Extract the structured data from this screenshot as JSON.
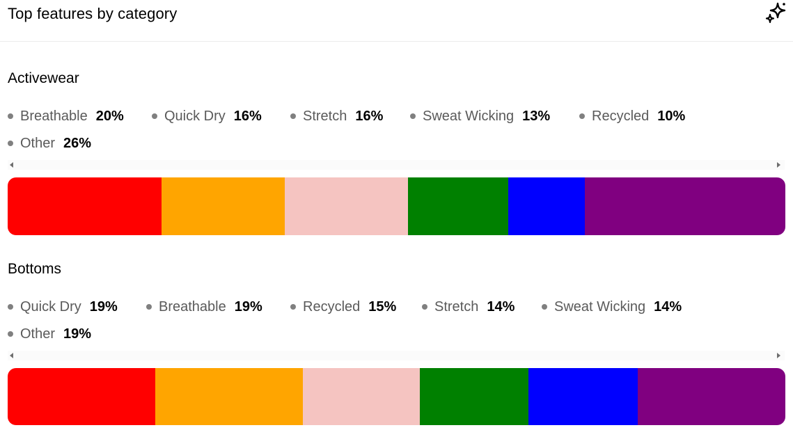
{
  "header": {
    "title": "Top features by category",
    "action_icon": "sparkle-icon"
  },
  "chart_data": [
    {
      "type": "bar",
      "stacked": "100%",
      "title": "Activewear",
      "series": [
        {
          "name": "Breathable",
          "value": 20,
          "value_label": "20%",
          "color": "#ff0000"
        },
        {
          "name": "Quick Dry",
          "value": 16,
          "value_label": "16%",
          "color": "#ffa500"
        },
        {
          "name": "Stretch",
          "value": 16,
          "value_label": "16%",
          "color": "#f5c4c1"
        },
        {
          "name": "Sweat Wicking",
          "value": 13,
          "value_label": "13%",
          "color": "#008000"
        },
        {
          "name": "Recycled",
          "value": 10,
          "value_label": "10%",
          "color": "#0000ff"
        },
        {
          "name": "Other",
          "value": 26,
          "value_label": "26%",
          "color": "#800080"
        }
      ]
    },
    {
      "type": "bar",
      "stacked": "100%",
      "title": "Bottoms",
      "series": [
        {
          "name": "Quick Dry",
          "value": 19,
          "value_label": "19%",
          "color": "#ff0000"
        },
        {
          "name": "Breathable",
          "value": 19,
          "value_label": "19%",
          "color": "#ffa500"
        },
        {
          "name": "Recycled",
          "value": 15,
          "value_label": "15%",
          "color": "#f5c4c1"
        },
        {
          "name": "Stretch",
          "value": 14,
          "value_label": "14%",
          "color": "#008000"
        },
        {
          "name": "Sweat Wicking",
          "value": 14,
          "value_label": "14%",
          "color": "#0000ff"
        },
        {
          "name": "Other",
          "value": 19,
          "value_label": "19%",
          "color": "#800080"
        }
      ]
    }
  ]
}
